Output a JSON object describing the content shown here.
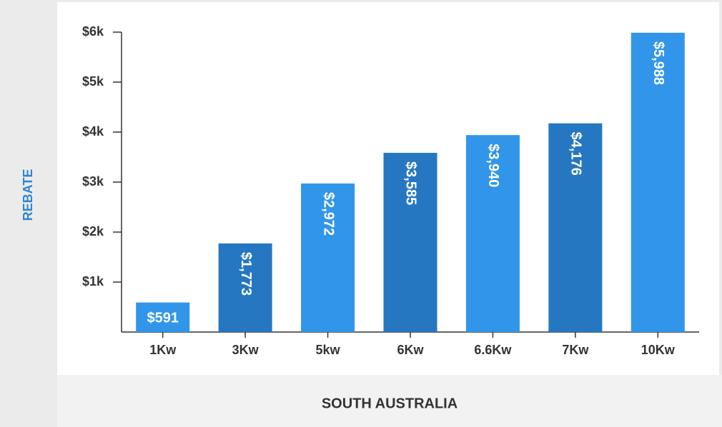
{
  "chart_data": {
    "type": "bar",
    "x_label": "SOUTH AUSTRALIA",
    "y_label": "REBATE",
    "categories": [
      "1Kw",
      "3Kw",
      "5kw",
      "6Kw",
      "6.6Kw",
      "7Kw",
      "10Kw"
    ],
    "values": [
      591,
      1773,
      2972,
      3585,
      3940,
      4176,
      5988
    ],
    "value_labels": [
      "$591",
      "$1,773",
      "$2,972",
      "$3,585",
      "$3,940",
      "$4,176",
      "$5,988"
    ],
    "colors": [
      "#3196e9",
      "#2677c1",
      "#3196e9",
      "#2677c1",
      "#3196e9",
      "#2677c1",
      "#3196e9"
    ],
    "ylim": [
      0,
      6000
    ],
    "yticks": [
      {
        "value": 1000,
        "label": "$1k"
      },
      {
        "value": 2000,
        "label": "$2k"
      },
      {
        "value": 3000,
        "label": "$3k"
      },
      {
        "value": 4000,
        "label": "$4k"
      },
      {
        "value": 5000,
        "label": "$5k"
      },
      {
        "value": 6000,
        "label": "$6k"
      }
    ],
    "grid": false
  }
}
